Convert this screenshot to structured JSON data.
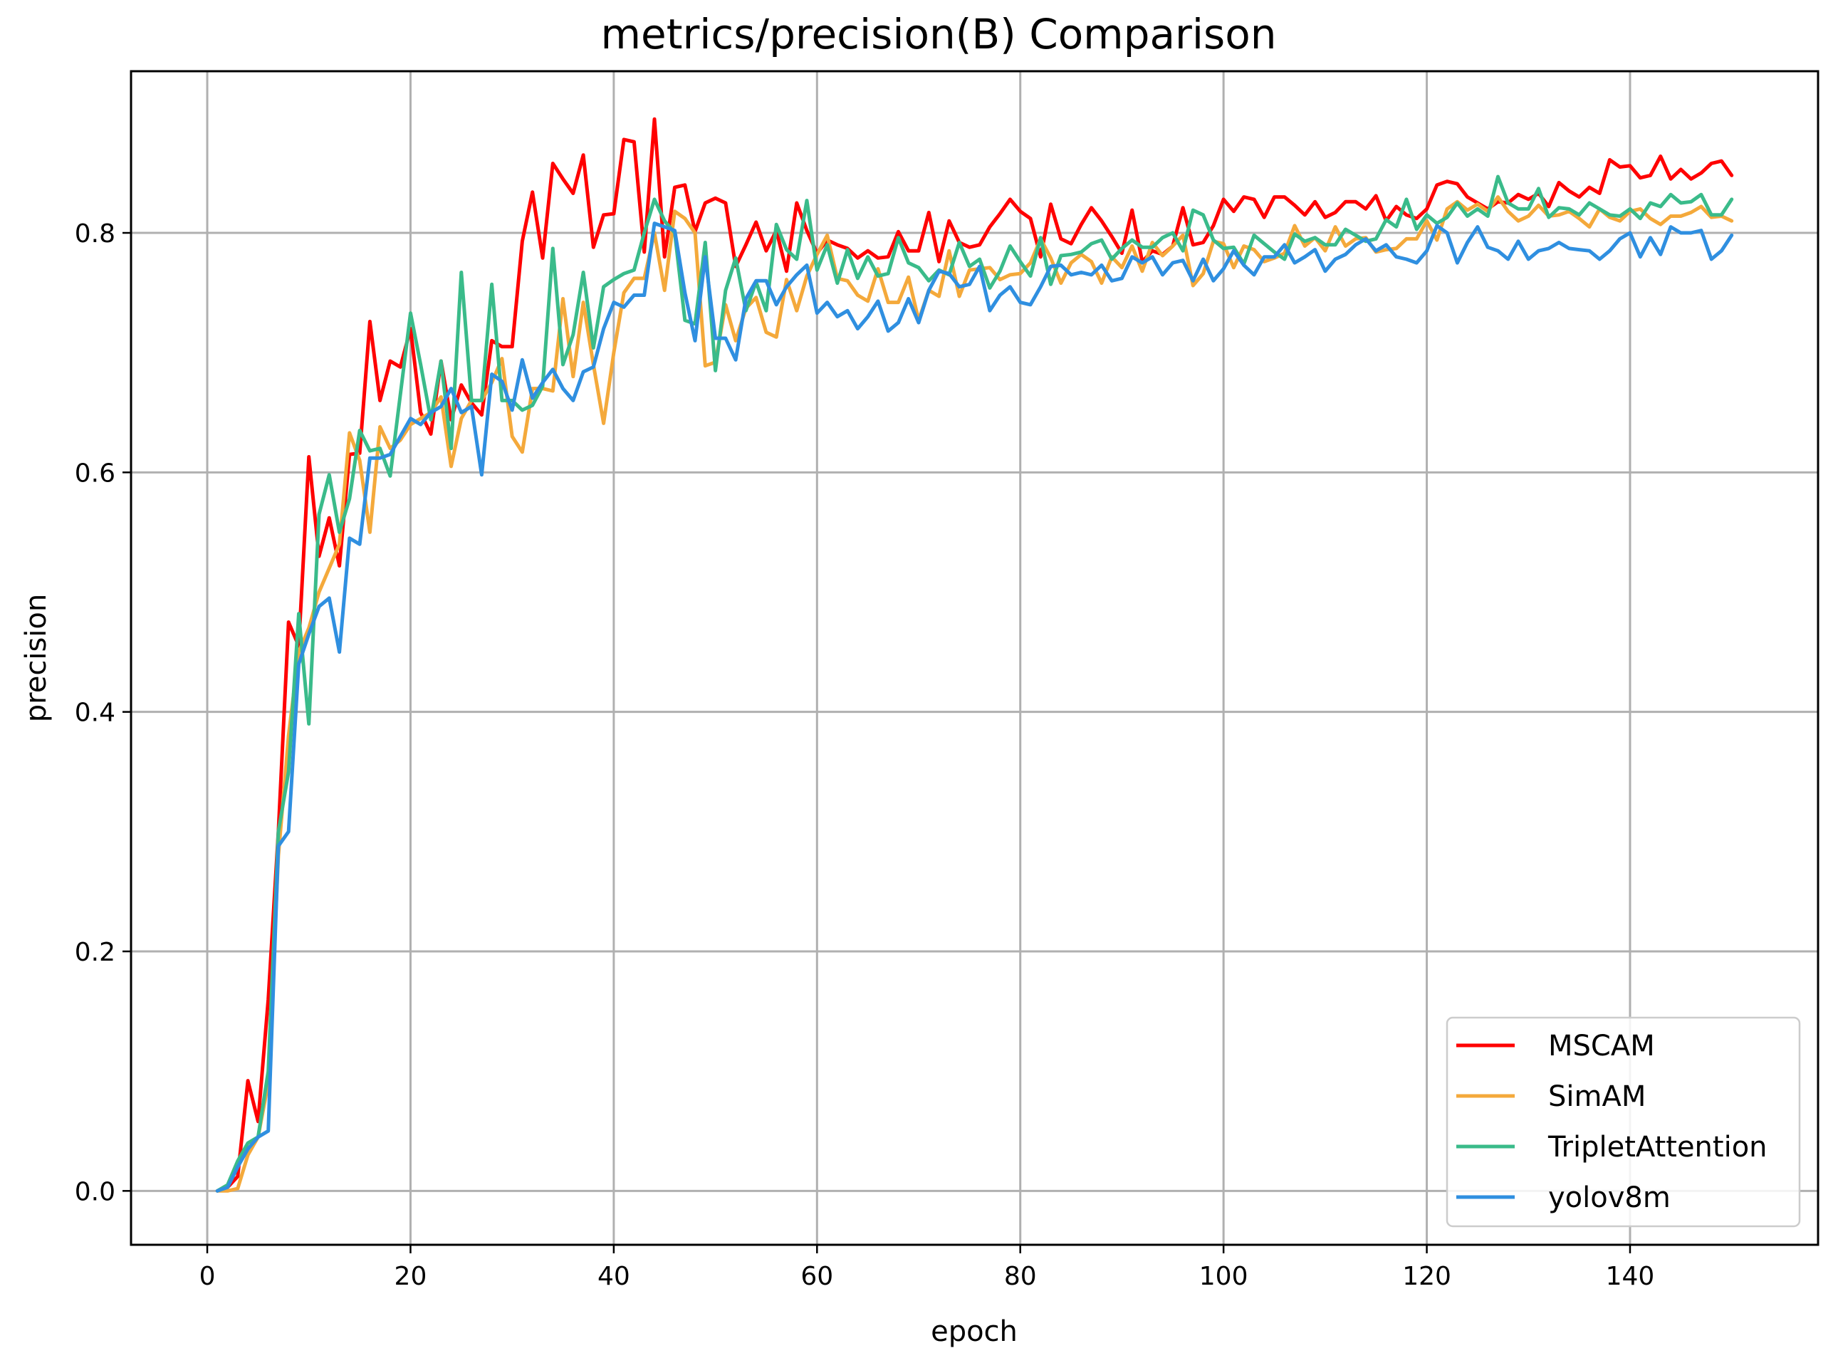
{
  "chart_data": {
    "type": "line",
    "title": "metrics/precision(B) Comparison",
    "xlabel": "epoch",
    "ylabel": "precision",
    "xlim": [
      -7.5,
      158.5
    ],
    "ylim": [
      -0.045,
      0.935
    ],
    "xticks": [
      0,
      20,
      40,
      60,
      80,
      100,
      120,
      140
    ],
    "yticks": [
      0.0,
      0.2,
      0.4,
      0.6,
      0.8
    ],
    "grid": true,
    "legend_position": "lower-right",
    "x": [
      1,
      2,
      3,
      4,
      5,
      6,
      7,
      8,
      9,
      10,
      11,
      12,
      13,
      14,
      15,
      16,
      17,
      18,
      19,
      20,
      21,
      22,
      23,
      24,
      25,
      26,
      27,
      28,
      29,
      30,
      31,
      32,
      33,
      34,
      35,
      36,
      37,
      38,
      39,
      40,
      41,
      42,
      43,
      44,
      45,
      46,
      47,
      48,
      49,
      50,
      51,
      52,
      53,
      54,
      55,
      56,
      57,
      58,
      59,
      60,
      61,
      62,
      63,
      64,
      65,
      66,
      67,
      68,
      69,
      70,
      71,
      72,
      73,
      74,
      75,
      76,
      77,
      78,
      79,
      80,
      81,
      82,
      83,
      84,
      85,
      86,
      87,
      88,
      89,
      90,
      91,
      92,
      93,
      94,
      95,
      96,
      97,
      98,
      99,
      100,
      101,
      102,
      103,
      104,
      105,
      106,
      107,
      108,
      109,
      110,
      111,
      112,
      113,
      114,
      115,
      116,
      117,
      118,
      119,
      120,
      121,
      122,
      123,
      124,
      125,
      126,
      127,
      128,
      129,
      130,
      131,
      132,
      133,
      134,
      135,
      136,
      137,
      138,
      139,
      140,
      141,
      142,
      143,
      144,
      145,
      146,
      147,
      148,
      149,
      150
    ],
    "series": [
      {
        "name": "MSCAM",
        "color": "#ff0000",
        "values": [
          0.0,
          0.003,
          0.012,
          0.092,
          0.058,
          0.16,
          0.3,
          0.475,
          0.455,
          0.613,
          0.53,
          0.562,
          0.522,
          0.615,
          0.616,
          0.726,
          0.66,
          0.693,
          0.688,
          0.72,
          0.65,
          0.632,
          0.693,
          0.644,
          0.673,
          0.658,
          0.648,
          0.71,
          0.705,
          0.705,
          0.793,
          0.834,
          0.779,
          0.858,
          0.845,
          0.833,
          0.865,
          0.788,
          0.815,
          0.816,
          0.878,
          0.876,
          0.784,
          0.895,
          0.78,
          0.838,
          0.84,
          0.801,
          0.825,
          0.829,
          0.825,
          0.772,
          0.79,
          0.809,
          0.785,
          0.802,
          0.768,
          0.825,
          0.802,
          0.783,
          0.794,
          0.79,
          0.787,
          0.779,
          0.785,
          0.779,
          0.78,
          0.801,
          0.785,
          0.785,
          0.817,
          0.776,
          0.81,
          0.792,
          0.788,
          0.79,
          0.805,
          0.816,
          0.828,
          0.818,
          0.812,
          0.78,
          0.824,
          0.795,
          0.791,
          0.807,
          0.821,
          0.81,
          0.797,
          0.783,
          0.819,
          0.776,
          0.785,
          0.782,
          0.789,
          0.821,
          0.79,
          0.792,
          0.806,
          0.828,
          0.818,
          0.83,
          0.828,
          0.813,
          0.83,
          0.83,
          0.823,
          0.815,
          0.826,
          0.813,
          0.817,
          0.826,
          0.826,
          0.82,
          0.831,
          0.81,
          0.822,
          0.815,
          0.812,
          0.82,
          0.84,
          0.843,
          0.841,
          0.83,
          0.825,
          0.82,
          0.826,
          0.825,
          0.832,
          0.828,
          0.833,
          0.822,
          0.842,
          0.835,
          0.83,
          0.838,
          0.833,
          0.861,
          0.855,
          0.856,
          0.846,
          0.848,
          0.864,
          0.845,
          0.853,
          0.845,
          0.85,
          0.858,
          0.86,
          0.848
        ]
      },
      {
        "name": "SimAM",
        "color": "#f4a93b",
        "values": [
          0.0,
          0.0,
          0.002,
          0.03,
          0.045,
          0.09,
          0.28,
          0.38,
          0.45,
          0.47,
          0.5,
          0.52,
          0.54,
          0.633,
          0.61,
          0.55,
          0.638,
          0.62,
          0.627,
          0.64,
          0.645,
          0.65,
          0.663,
          0.605,
          0.645,
          0.66,
          0.66,
          0.675,
          0.695,
          0.63,
          0.617,
          0.67,
          0.67,
          0.668,
          0.745,
          0.68,
          0.742,
          0.69,
          0.641,
          0.7,
          0.75,
          0.762,
          0.762,
          0.8,
          0.752,
          0.818,
          0.812,
          0.8,
          0.689,
          0.692,
          0.74,
          0.71,
          0.737,
          0.746,
          0.717,
          0.713,
          0.761,
          0.735,
          0.764,
          0.782,
          0.798,
          0.762,
          0.76,
          0.748,
          0.743,
          0.77,
          0.742,
          0.742,
          0.763,
          0.727,
          0.752,
          0.747,
          0.785,
          0.747,
          0.769,
          0.77,
          0.771,
          0.761,
          0.765,
          0.766,
          0.775,
          0.795,
          0.779,
          0.758,
          0.775,
          0.782,
          0.776,
          0.758,
          0.78,
          0.771,
          0.789,
          0.768,
          0.792,
          0.781,
          0.789,
          0.798,
          0.756,
          0.766,
          0.793,
          0.791,
          0.771,
          0.789,
          0.786,
          0.776,
          0.779,
          0.783,
          0.806,
          0.789,
          0.796,
          0.785,
          0.805,
          0.789,
          0.795,
          0.796,
          0.784,
          0.786,
          0.787,
          0.795,
          0.795,
          0.81,
          0.794,
          0.82,
          0.826,
          0.819,
          0.824,
          0.818,
          0.83,
          0.818,
          0.81,
          0.814,
          0.823,
          0.814,
          0.815,
          0.818,
          0.812,
          0.805,
          0.82,
          0.813,
          0.81,
          0.818,
          0.82,
          0.812,
          0.807,
          0.814,
          0.814,
          0.817,
          0.822,
          0.813,
          0.814,
          0.81
        ]
      },
      {
        "name": "TripletAttention",
        "color": "#3abb8a",
        "values": [
          0.0,
          0.005,
          0.025,
          0.04,
          0.045,
          0.1,
          0.3,
          0.35,
          0.482,
          0.39,
          0.565,
          0.598,
          0.55,
          0.578,
          0.635,
          0.618,
          0.62,
          0.597,
          0.665,
          0.733,
          0.69,
          0.644,
          0.693,
          0.62,
          0.767,
          0.66,
          0.66,
          0.757,
          0.66,
          0.66,
          0.652,
          0.656,
          0.672,
          0.787,
          0.69,
          0.715,
          0.767,
          0.704,
          0.755,
          0.761,
          0.766,
          0.769,
          0.8,
          0.828,
          0.81,
          0.8,
          0.727,
          0.724,
          0.792,
          0.685,
          0.752,
          0.779,
          0.735,
          0.759,
          0.735,
          0.807,
          0.786,
          0.778,
          0.827,
          0.769,
          0.79,
          0.758,
          0.786,
          0.762,
          0.78,
          0.764,
          0.766,
          0.796,
          0.775,
          0.771,
          0.76,
          0.769,
          0.765,
          0.792,
          0.772,
          0.778,
          0.754,
          0.768,
          0.789,
          0.776,
          0.764,
          0.796,
          0.757,
          0.781,
          0.782,
          0.784,
          0.791,
          0.794,
          0.778,
          0.787,
          0.794,
          0.788,
          0.788,
          0.796,
          0.8,
          0.785,
          0.819,
          0.815,
          0.794,
          0.787,
          0.788,
          0.774,
          0.798,
          0.791,
          0.784,
          0.778,
          0.799,
          0.793,
          0.796,
          0.79,
          0.79,
          0.803,
          0.798,
          0.793,
          0.795,
          0.811,
          0.805,
          0.828,
          0.803,
          0.815,
          0.808,
          0.813,
          0.825,
          0.814,
          0.82,
          0.814,
          0.847,
          0.825,
          0.82,
          0.82,
          0.837,
          0.813,
          0.821,
          0.82,
          0.815,
          0.825,
          0.82,
          0.815,
          0.814,
          0.82,
          0.812,
          0.825,
          0.822,
          0.832,
          0.825,
          0.826,
          0.832,
          0.815,
          0.815,
          0.828
        ]
      },
      {
        "name": "yolov8m",
        "color": "#2f8fe0",
        "values": [
          0.0,
          0.003,
          0.02,
          0.035,
          0.045,
          0.05,
          0.288,
          0.3,
          0.44,
          0.465,
          0.488,
          0.495,
          0.45,
          0.545,
          0.54,
          0.612,
          0.612,
          0.615,
          0.63,
          0.645,
          0.64,
          0.65,
          0.655,
          0.67,
          0.65,
          0.655,
          0.598,
          0.682,
          0.676,
          0.652,
          0.694,
          0.662,
          0.675,
          0.686,
          0.67,
          0.66,
          0.684,
          0.688,
          0.72,
          0.742,
          0.738,
          0.748,
          0.748,
          0.808,
          0.805,
          0.802,
          0.75,
          0.71,
          0.78,
          0.712,
          0.712,
          0.694,
          0.745,
          0.76,
          0.76,
          0.74,
          0.755,
          0.765,
          0.773,
          0.733,
          0.742,
          0.73,
          0.735,
          0.72,
          0.73,
          0.743,
          0.718,
          0.725,
          0.745,
          0.725,
          0.752,
          0.768,
          0.766,
          0.755,
          0.757,
          0.772,
          0.735,
          0.748,
          0.755,
          0.742,
          0.74,
          0.755,
          0.772,
          0.773,
          0.765,
          0.767,
          0.765,
          0.773,
          0.76,
          0.762,
          0.78,
          0.775,
          0.78,
          0.765,
          0.775,
          0.777,
          0.76,
          0.778,
          0.76,
          0.77,
          0.785,
          0.773,
          0.765,
          0.78,
          0.78,
          0.79,
          0.775,
          0.78,
          0.786,
          0.768,
          0.778,
          0.782,
          0.79,
          0.795,
          0.785,
          0.79,
          0.78,
          0.778,
          0.775,
          0.785,
          0.806,
          0.8,
          0.775,
          0.792,
          0.805,
          0.788,
          0.785,
          0.778,
          0.793,
          0.778,
          0.785,
          0.787,
          0.792,
          0.787,
          0.786,
          0.785,
          0.778,
          0.785,
          0.795,
          0.8,
          0.78,
          0.796,
          0.782,
          0.805,
          0.8,
          0.8,
          0.802,
          0.778,
          0.785,
          0.798
        ]
      }
    ]
  }
}
